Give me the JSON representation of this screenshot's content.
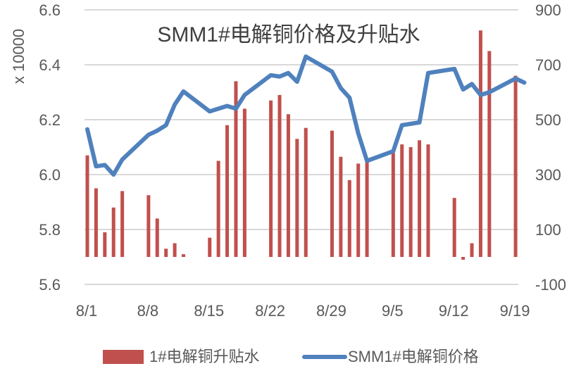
{
  "chart_data": {
    "type": "bar+line",
    "title": "SMM1#电解铜价格及升贴水",
    "left_axis": {
      "label": "x 10000",
      "ticks": [
        "6.6",
        "6.4",
        "6.2",
        "6.0",
        "5.8",
        "5.6"
      ],
      "ylim": [
        5.6,
        6.6
      ]
    },
    "right_axis": {
      "ticks": [
        "900",
        "700",
        "500",
        "300",
        "100",
        "-100"
      ],
      "ylim": [
        -100,
        900
      ]
    },
    "x_axis": {
      "tick_labels": [
        "8/1",
        "8/8",
        "8/15",
        "8/22",
        "8/29",
        "9/5",
        "9/12",
        "9/19"
      ]
    },
    "grid": true,
    "legend_position": "bottom",
    "legend": [
      {
        "name": "1#电解铜升贴水",
        "type": "bar",
        "color": "#C0504D"
      },
      {
        "name": "SMM1#电解铜价格",
        "type": "line",
        "color": "#4F81BD"
      }
    ],
    "categories": [
      "8/1",
      "8/2",
      "8/3",
      "8/4",
      "8/5",
      "8/8",
      "8/9",
      "8/10",
      "8/11",
      "8/12",
      "8/15",
      "8/16",
      "8/17",
      "8/18",
      "8/19",
      "8/22",
      "8/23",
      "8/24",
      "8/25",
      "8/26",
      "8/29",
      "8/30",
      "8/31",
      "9/1",
      "9/2",
      "9/5",
      "9/6",
      "9/7",
      "9/8",
      "9/9",
      "9/12",
      "9/13",
      "9/14",
      "9/15",
      "9/16",
      "9/19",
      "9/20"
    ],
    "day_offsets": [
      0,
      1,
      2,
      3,
      4,
      7,
      8,
      9,
      10,
      11,
      14,
      15,
      16,
      17,
      18,
      21,
      22,
      23,
      24,
      25,
      28,
      29,
      30,
      31,
      32,
      35,
      36,
      37,
      38,
      39,
      42,
      43,
      44,
      45,
      46,
      49,
      50
    ],
    "series": [
      {
        "name": "1#电解铜升贴水",
        "axis": "right",
        "type": "bar",
        "values": [
          370,
          250,
          90,
          180,
          240,
          225,
          140,
          30,
          50,
          10,
          70,
          350,
          480,
          640,
          540,
          570,
          590,
          520,
          430,
          470,
          460,
          365,
          280,
          340,
          360,
          380,
          410,
          400,
          425,
          410,
          215,
          -10,
          50,
          825,
          750,
          660,
          null
        ]
      },
      {
        "name": "SMM1#电解铜价格",
        "axis": "left",
        "type": "line",
        "unit": "x 10000",
        "values": [
          6.165,
          6.03,
          6.035,
          6.0,
          6.055,
          6.145,
          6.16,
          6.18,
          6.255,
          6.303,
          6.23,
          6.24,
          6.25,
          6.24,
          6.29,
          6.362,
          6.357,
          6.37,
          6.338,
          6.43,
          6.375,
          6.315,
          6.28,
          6.15,
          6.05,
          6.085,
          6.18,
          6.185,
          6.19,
          6.37,
          6.385,
          6.31,
          6.33,
          6.29,
          6.3,
          6.35,
          6.335
        ]
      }
    ]
  }
}
